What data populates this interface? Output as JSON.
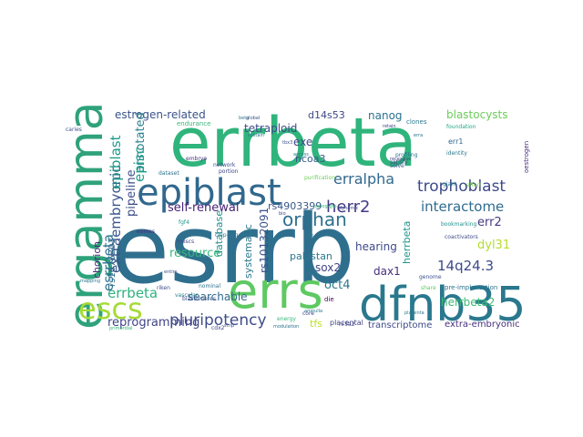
{
  "word_cloud": {
    "words": [
      {
        "text": "esrrb",
        "color": "#2f6f8e"
      },
      {
        "text": "errbeta",
        "color": "#2fb47c"
      },
      {
        "text": "dfnb35",
        "color": "#2a788e"
      },
      {
        "text": "errs",
        "color": "#5ec962"
      },
      {
        "text": "ergamma",
        "color": "#2ea27b"
      },
      {
        "text": "epiblast",
        "color": "#31688e"
      },
      {
        "text": "escs",
        "color": "#a5db36"
      },
      {
        "text": "extraembryonic",
        "color": "#3a548c"
      },
      {
        "text": "trophoblast",
        "color": "#3e4a89"
      },
      {
        "text": "errbeta",
        "color": "#2db27d"
      },
      {
        "text": "pluripotency",
        "color": "#3e4c8a"
      },
      {
        "text": "erralpha",
        "color": "#31688e"
      },
      {
        "text": "herr2",
        "color": "#443983"
      },
      {
        "text": "orphan",
        "color": "#2d708e"
      },
      {
        "text": "interactome",
        "color": "#2f6c8e"
      },
      {
        "text": "esrrbeta",
        "color": "#2c728e"
      },
      {
        "text": "estrogen-related",
        "color": "#3b528b"
      },
      {
        "text": "self-renewal",
        "color": "#482475"
      },
      {
        "text": "rs4903399",
        "color": "#38588c"
      },
      {
        "text": "nanog",
        "color": "#2c718e"
      },
      {
        "text": "blastocysts",
        "color": "#6ccd5a"
      },
      {
        "text": "d14s53",
        "color": "#3e4989"
      },
      {
        "text": "tetraploid",
        "color": "#3e4a89"
      },
      {
        "text": "epiblast",
        "color": "#1f9a8a"
      },
      {
        "text": "ncoa3",
        "color": "#38598c"
      },
      {
        "text": "exe",
        "color": "#3f4788"
      },
      {
        "text": "annotated",
        "color": "#27808e"
      },
      {
        "text": "pipeline",
        "color": "#3d4d8a"
      },
      {
        "text": "episc",
        "color": "#1fa088"
      },
      {
        "text": "database",
        "color": "#21918c"
      },
      {
        "text": "resource",
        "color": "#35b779"
      },
      {
        "text": "rs1676303",
        "color": "#31688e"
      },
      {
        "text": "rs10132091",
        "color": "#3b528b"
      },
      {
        "text": "systematic",
        "color": "#2a788e"
      },
      {
        "text": "sox2",
        "color": "#414487"
      },
      {
        "text": "oct4",
        "color": "#2a778e"
      },
      {
        "text": "hearing",
        "color": "#3f4889"
      },
      {
        "text": "dax1",
        "color": "#472d7b"
      },
      {
        "text": "pakistan",
        "color": "#2a788e"
      },
      {
        "text": "herrbeta",
        "color": "#1f958b"
      },
      {
        "text": "herrbeta2",
        "color": "#3bbb75"
      },
      {
        "text": "dyl31",
        "color": "#b5de2b"
      },
      {
        "text": "14q24.3",
        "color": "#3e4989"
      },
      {
        "text": "err2",
        "color": "#443a83"
      },
      {
        "text": "chorion",
        "color": "#482878"
      },
      {
        "text": "searchable",
        "color": "#30698e"
      },
      {
        "text": "reprogramming",
        "color": "#414487"
      },
      {
        "text": "tfs",
        "color": "#bddf26"
      },
      {
        "text": "transcriptome",
        "color": "#3e4a89"
      },
      {
        "text": "extra-embryonic",
        "color": "#46317e"
      },
      {
        "text": "placental",
        "color": "#414487"
      },
      {
        "text": "err1",
        "color": "#31688e"
      },
      {
        "text": "bookmarking",
        "color": "#21918c"
      },
      {
        "text": "pre-implantation",
        "color": "#2c728e"
      },
      {
        "text": "genome",
        "color": "#3b528b"
      },
      {
        "text": "share",
        "color": "#5ec962"
      },
      {
        "text": "giant",
        "color": "#2a788e"
      },
      {
        "text": "effort",
        "color": "#7ad151"
      },
      {
        "text": "network",
        "color": "#3e4989"
      },
      {
        "text": "embryo",
        "color": "#472f7d"
      },
      {
        "text": "beta",
        "color": "#2a788e"
      },
      {
        "text": "endurance",
        "color": "#35b779"
      },
      {
        "text": "portion",
        "color": "#414487"
      },
      {
        "text": "nominal",
        "color": "#2c728e"
      },
      {
        "text": "riken",
        "color": "#3e4989"
      },
      {
        "text": "vascular",
        "color": "#2a788e"
      },
      {
        "text": "fgf4",
        "color": "#1f9a8a"
      },
      {
        "text": "chip-seq",
        "color": "#2a788e"
      },
      {
        "text": "mescs",
        "color": "#414487"
      },
      {
        "text": "eomes",
        "color": "#472d7b"
      },
      {
        "text": "blastomeres",
        "color": "#3b528b"
      },
      {
        "text": "satisfy",
        "color": "#3e4a89"
      },
      {
        "text": "profiling",
        "color": "#2c728e"
      },
      {
        "text": "clones",
        "color": "#2a788e"
      },
      {
        "text": "solve",
        "color": "#3b528b"
      },
      {
        "text": "purification",
        "color": "#6ccd5a"
      },
      {
        "text": "access",
        "color": "#2a788e"
      },
      {
        "text": "identity",
        "color": "#2a788e"
      },
      {
        "text": "foundation",
        "color": "#22a884"
      },
      {
        "text": "coactivators",
        "color": "#3e4a89"
      },
      {
        "text": "core",
        "color": "#414487"
      },
      {
        "text": "ampulla",
        "color": "#2a788e"
      },
      {
        "text": "cdx2",
        "color": "#414487"
      },
      {
        "text": "energy",
        "color": "#35b779"
      },
      {
        "text": "die",
        "color": "#440154"
      },
      {
        "text": "caries",
        "color": "#3b528b"
      },
      {
        "text": "dataset",
        "color": "#2c728e"
      },
      {
        "text": "tbx3",
        "color": "#3b528b"
      },
      {
        "text": "nr5a2",
        "color": "#414487"
      },
      {
        "text": "placenta",
        "color": "#2a788e"
      },
      {
        "text": "strip",
        "color": "#3e4a89"
      },
      {
        "text": "modulation",
        "color": "#2c728e"
      },
      {
        "text": "primordial",
        "color": "#35b779"
      },
      {
        "text": "sustain",
        "color": "#2a788e"
      },
      {
        "text": "retain",
        "color": "#414487"
      },
      {
        "text": "oestrogen",
        "color": "#472d7b"
      },
      {
        "text": "gtx",
        "color": "#2a788e"
      },
      {
        "text": "dynamic",
        "color": "#3e4989"
      },
      {
        "text": "global",
        "color": "#3b528b"
      },
      {
        "text": "erra",
        "color": "#2c728e"
      },
      {
        "text": "bio",
        "color": "#414487"
      },
      {
        "text": "entire",
        "color": "#3b528b"
      },
      {
        "text": "nanog-gfp",
        "color": "#35b779"
      },
      {
        "text": "mapping",
        "color": "#2a788e"
      },
      {
        "text": "recessive",
        "color": "#414487"
      }
    ]
  }
}
